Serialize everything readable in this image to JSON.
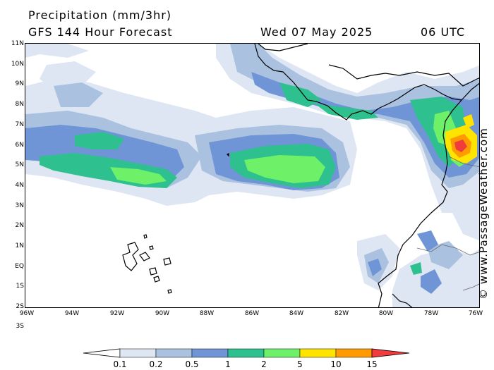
{
  "header": {
    "title": "Precipitation (mm/3hr)",
    "model": "GFS 144 Hour Forecast",
    "date": "Wed 07 May 2025",
    "time": "06 UTC"
  },
  "credit": "© www.PassageWeather.com",
  "axes": {
    "lat_labels": [
      "11N",
      "10N",
      "9N",
      "8N",
      "7N",
      "6N",
      "5N",
      "4N",
      "3N",
      "2N",
      "1N",
      "EQ",
      "1S",
      "2S",
      "3S"
    ],
    "lon_labels": [
      "96W",
      "94W",
      "92W",
      "90W",
      "88W",
      "86W",
      "84W",
      "82W",
      "80W",
      "78W",
      "76W"
    ]
  },
  "legend": {
    "labels": [
      "0.1",
      "0.2",
      "0.5",
      "1",
      "2",
      "5",
      "10",
      "15"
    ],
    "colors": [
      "#dde6f2",
      "#aac2e0",
      "#6f95d6",
      "#2ec08f",
      "#6ef069",
      "#ffe400",
      "#ff9a00",
      "#f03c3c"
    ]
  },
  "colors": {
    "lvl1": "#dde6f2",
    "lvl2": "#aac2e0",
    "lvl3": "#6f95d6",
    "lvl4": "#2ec08f",
    "lvl5": "#6ef069",
    "lvl6": "#ffe400",
    "lvl7": "#ff9a00",
    "lvl8": "#f03c3c"
  }
}
